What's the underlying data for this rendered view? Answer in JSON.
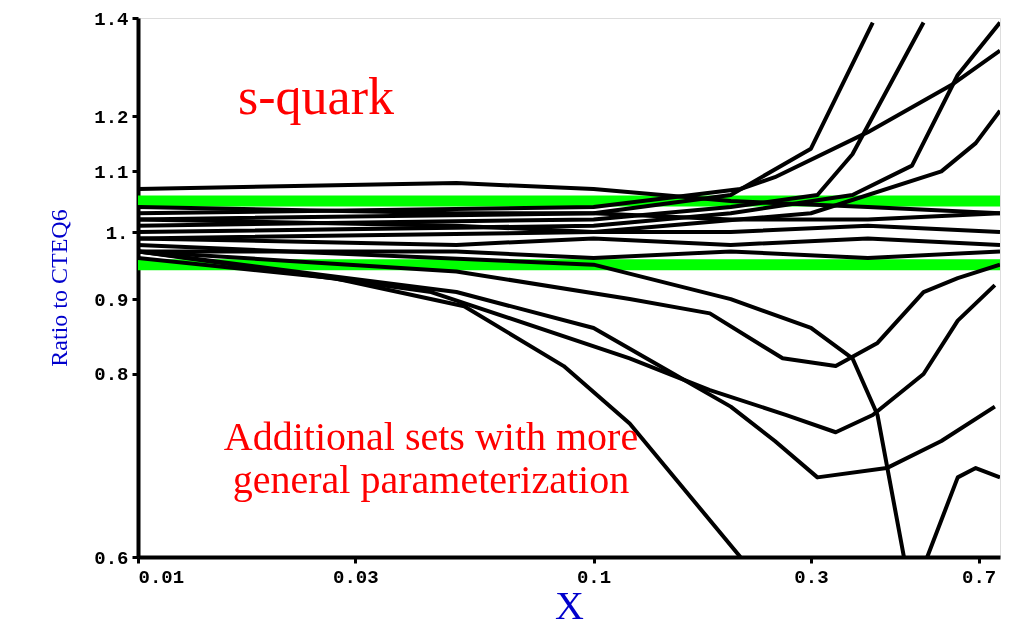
{
  "chart_data": {
    "type": "line",
    "xlabel": "X",
    "ylabel": "Ratio to CTEQ6",
    "log": "xy",
    "grid": false,
    "line_style": "solid",
    "marker": "none",
    "xlim": [
      0.01,
      0.78
    ],
    "xticks": [
      0.01,
      0.03,
      0.1,
      0.3,
      0.7
    ],
    "ylim": [
      0.6,
      1.4
    ],
    "yticks": [
      0.6,
      0.8,
      0.9,
      {
        "value": 1,
        "label": "1."
      },
      1.1,
      1.2,
      1.4
    ],
    "annotations": [
      "s-quark",
      "Additional sets with more\ngeneral parameterization"
    ],
    "ref_lines": [
      {
        "axis": "y",
        "value": 1.05,
        "label": null,
        "color": "#00ff00"
      },
      {
        "axis": "y",
        "value": 0.95,
        "label": null,
        "color": "#00ff00"
      }
    ],
    "series": [
      {
        "color": "#000000",
        "x": [
          0.01,
          0.05,
          0.1,
          0.2,
          0.4,
          0.78
        ],
        "values": [
          1.07,
          1.08,
          1.07,
          1.05,
          1.04,
          1.03
        ]
      },
      {
        "color": "#000000",
        "x": [
          0.01,
          0.05,
          0.1,
          0.2,
          0.4,
          0.78
        ],
        "values": [
          1.04,
          1.03,
          1.03,
          1.02,
          1.02,
          1.03
        ]
      },
      {
        "color": "#000000",
        "x": [
          0.01,
          0.05,
          0.1,
          0.2,
          0.4,
          0.78
        ],
        "values": [
          1.02,
          1.01,
          1.0,
          1.0,
          1.01,
          1.0
        ]
      },
      {
        "color": "#000000",
        "x": [
          0.01,
          0.05,
          0.1,
          0.2,
          0.4,
          0.78
        ],
        "values": [
          0.99,
          0.98,
          0.99,
          0.98,
          0.99,
          0.98
        ]
      },
      {
        "color": "#000000",
        "x": [
          0.01,
          0.05,
          0.1,
          0.2,
          0.4,
          0.78
        ],
        "values": [
          0.97,
          0.97,
          0.96,
          0.97,
          0.96,
          0.97
        ]
      },
      {
        "color": "#000000",
        "x": [
          0.01,
          0.1,
          0.2,
          0.3,
          0.41
        ],
        "values": [
          1.02,
          1.03,
          1.06,
          1.14,
          1.39
        ]
      },
      {
        "color": "#000000",
        "x": [
          0.01,
          0.1,
          0.2,
          0.31,
          0.37,
          0.53
        ],
        "values": [
          1.01,
          1.02,
          1.04,
          1.06,
          1.13,
          1.39
        ]
      },
      {
        "color": "#000000",
        "x": [
          0.01,
          0.1,
          0.21,
          0.25,
          0.4,
          0.61,
          0.78
        ],
        "values": [
          1.03,
          1.04,
          1.07,
          1.09,
          1.17,
          1.26,
          1.33
        ]
      },
      {
        "color": "#000000",
        "x": [
          0.01,
          0.1,
          0.2,
          0.37,
          0.5,
          0.63,
          0.78
        ],
        "values": [
          1.0,
          1.01,
          1.03,
          1.06,
          1.11,
          1.28,
          1.39
        ]
      },
      {
        "color": "#000000",
        "x": [
          0.01,
          0.1,
          0.3,
          0.58,
          0.69,
          0.78
        ],
        "values": [
          0.99,
          1.0,
          1.03,
          1.1,
          1.15,
          1.21
        ]
      },
      {
        "color": "#000000",
        "x": [
          0.01,
          0.027,
          0.052,
          0.086,
          0.12,
          0.21
        ],
        "values": [
          0.96,
          0.93,
          0.89,
          0.81,
          0.74,
          0.6
        ]
      },
      {
        "color": "#000000",
        "x": [
          0.01,
          0.044,
          0.12,
          0.18,
          0.265,
          0.34,
          0.41,
          0.53,
          0.63,
          0.76
        ],
        "values": [
          0.97,
          0.91,
          0.82,
          0.78,
          0.75,
          0.73,
          0.75,
          0.8,
          0.87,
          0.92
        ]
      },
      {
        "color": "#000000",
        "x": [
          0.01,
          0.05,
          0.12,
          0.18,
          0.26,
          0.34,
          0.42,
          0.53,
          0.63,
          0.78
        ],
        "values": [
          0.97,
          0.94,
          0.9,
          0.88,
          0.82,
          0.81,
          0.84,
          0.91,
          0.93,
          0.95
        ]
      },
      {
        "color": "#000000",
        "x": [
          0.01,
          0.05,
          0.1,
          0.15,
          0.2,
          0.25,
          0.31,
          0.44,
          0.58,
          0.76
        ],
        "values": [
          0.97,
          0.91,
          0.86,
          0.8,
          0.76,
          0.72,
          0.68,
          0.69,
          0.72,
          0.76
        ]
      },
      {
        "color": "#000000",
        "x": [
          0.01,
          0.1,
          0.2,
          0.3,
          0.37,
          0.42,
          0.48
        ],
        "values": [
          0.98,
          0.95,
          0.9,
          0.86,
          0.82,
          0.75,
          0.6
        ]
      },
      {
        "color": "#000000",
        "x": [
          0.54,
          0.63,
          0.69,
          0.78
        ],
        "values": [
          0.6,
          0.68,
          0.69,
          0.68
        ]
      }
    ]
  }
}
